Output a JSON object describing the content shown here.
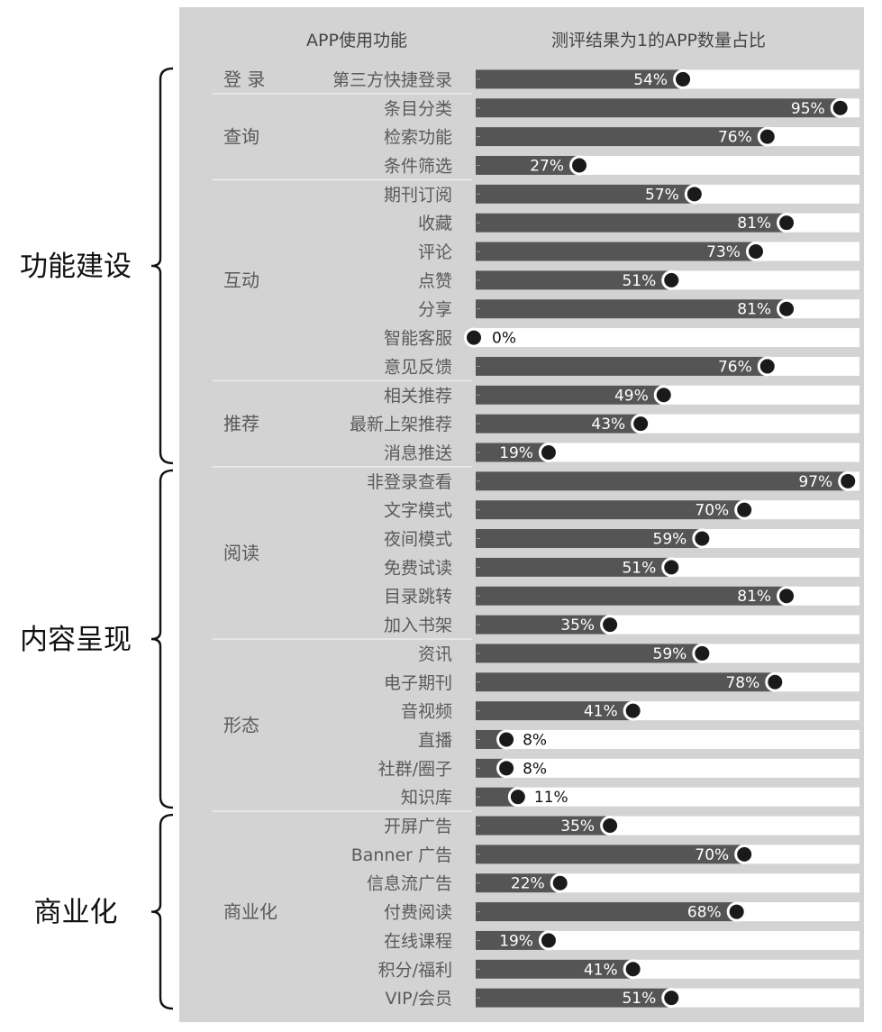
{
  "chart_data": {
    "type": "bar",
    "header": {
      "feature_col": "APP使用功能",
      "value_col": "测评结果为1的APP数量占比"
    },
    "xlim": [
      0,
      100
    ],
    "value_suffix": "%",
    "colors": {
      "panel": "#d3d3d3",
      "bar": "#555555",
      "track": "#ffffff",
      "label_text": "#444444",
      "sublabel_text": "#5a5a5a",
      "dot_fill": "#1a1a1a",
      "dot_stroke": "#ffffff",
      "bracket": "#111111",
      "divider": "#ededed"
    },
    "top_groups": [
      {
        "label": "功能建设",
        "categories": [
          "登录",
          "查询",
          "互动",
          "推荐"
        ]
      },
      {
        "label": "内容呈现",
        "categories": [
          "阅读",
          "形态"
        ]
      },
      {
        "label": "商业化",
        "categories": [
          "商业化"
        ]
      }
    ],
    "categories": [
      {
        "label": "登 录",
        "items": [
          {
            "name": "第三方快捷登录",
            "value": 54
          }
        ]
      },
      {
        "label": "查询",
        "items": [
          {
            "name": "条目分类",
            "value": 95
          },
          {
            "name": "检索功能",
            "value": 76
          },
          {
            "name": "条件筛选",
            "value": 27
          }
        ]
      },
      {
        "label": "互动",
        "items": [
          {
            "name": "期刊订阅",
            "value": 57
          },
          {
            "name": "收藏",
            "value": 81
          },
          {
            "name": "评论",
            "value": 73
          },
          {
            "name": "点赞",
            "value": 51
          },
          {
            "name": "分享",
            "value": 81
          },
          {
            "name": "智能客服",
            "value": 0
          },
          {
            "name": "意见反馈",
            "value": 76
          }
        ]
      },
      {
        "label": "推荐",
        "items": [
          {
            "name": "相关推荐",
            "value": 49
          },
          {
            "name": "最新上架推荐",
            "value": 43
          },
          {
            "name": "消息推送",
            "value": 19
          }
        ]
      },
      {
        "label": "阅读",
        "items": [
          {
            "name": "非登录查看",
            "value": 97
          },
          {
            "name": "文字模式",
            "value": 70
          },
          {
            "name": "夜间模式",
            "value": 59
          },
          {
            "name": "免费试读",
            "value": 51
          },
          {
            "name": "目录跳转",
            "value": 81
          },
          {
            "name": "加入书架",
            "value": 35
          }
        ]
      },
      {
        "label": "形态",
        "items": [
          {
            "name": "资讯",
            "value": 59
          },
          {
            "name": "电子期刊",
            "value": 78
          },
          {
            "name": "音视频",
            "value": 41
          },
          {
            "name": "直播",
            "value": 8
          },
          {
            "name": "社群/圈子",
            "value": 8
          },
          {
            "name": "知识库",
            "value": 11
          }
        ]
      },
      {
        "label": "商业化",
        "items": [
          {
            "name": "开屏广告",
            "value": 35
          },
          {
            "name": "Banner 广告",
            "value": 70
          },
          {
            "name": "信息流广告",
            "value": 22
          },
          {
            "name": "付费阅读",
            "value": 68
          },
          {
            "name": "在线课程",
            "value": 19
          },
          {
            "name": "积分/福利",
            "value": 41
          },
          {
            "name": "VIP/会员",
            "value": 51
          }
        ]
      }
    ]
  }
}
